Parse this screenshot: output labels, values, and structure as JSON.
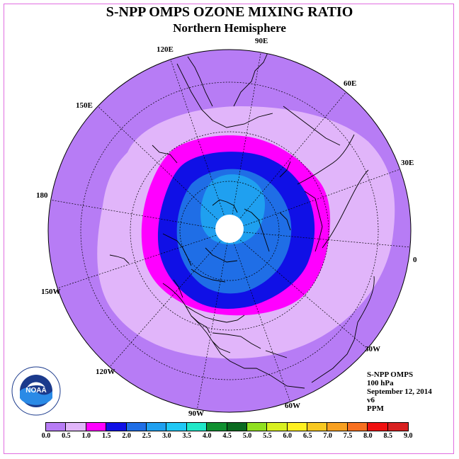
{
  "header": {
    "title": "S-NPP OMPS OZONE MIXING RATIO",
    "subtitle": "Northern Hemisphere"
  },
  "map": {
    "projection": "polar stereographic",
    "hemisphere": "north",
    "longitude_labels": [
      "0",
      "30E",
      "60E",
      "90E",
      "120E",
      "150E",
      "180",
      "150W",
      "120W",
      "90W",
      "60W",
      "30W"
    ],
    "no_data_pole": true
  },
  "info": {
    "instrument": "S-NPP OMPS",
    "pressure": "100 hPa",
    "date": "September 12, 2014",
    "version": "v6",
    "units": "PPM"
  },
  "legend": {
    "ticks": [
      "0.0",
      "0.5",
      "1.0",
      "1.5",
      "2.0",
      "2.5",
      "3.0",
      "3.5",
      "4.0",
      "4.5",
      "5.0",
      "5.5",
      "6.0",
      "6.5",
      "7.0",
      "7.5",
      "8.0",
      "8.5",
      "9.0"
    ],
    "colors": [
      "#b77cf5",
      "#e1b5fa",
      "#ff00ff",
      "#1010e6",
      "#1f6ee6",
      "#1fa0f0",
      "#20c8f5",
      "#20e8c8",
      "#109030",
      "#0a6a20",
      "#90e020",
      "#d8f020",
      "#fff020",
      "#f8c820",
      "#f8a020",
      "#f87020",
      "#f01010",
      "#d82020",
      "#7a4a2a"
    ]
  },
  "logo": {
    "text": "NOAA",
    "ring_top": "NATIONAL OCEANIC AND ATMOSPHERIC ADMINISTRATION",
    "ring_bottom": "U.S. DEPARTMENT OF COMMERCE"
  }
}
